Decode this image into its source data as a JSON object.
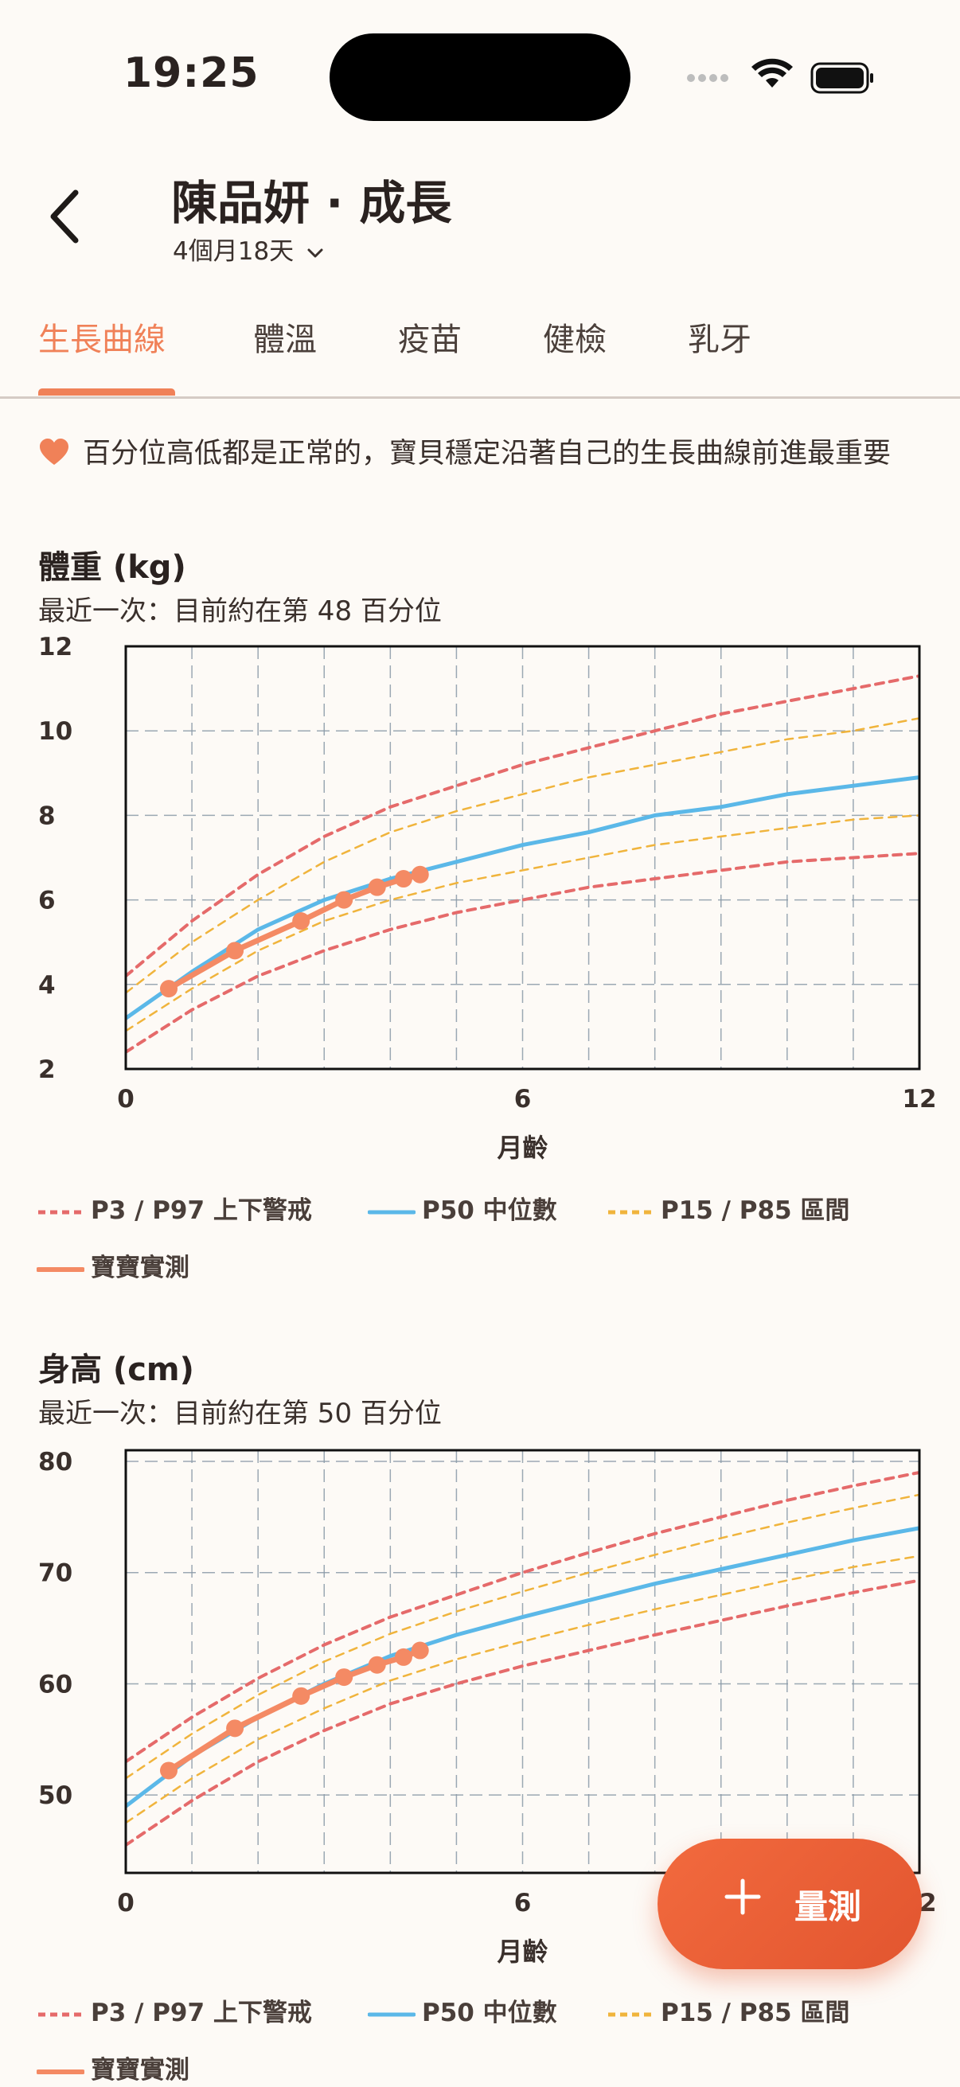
{
  "status": {
    "time": "19:25"
  },
  "header": {
    "title": "陳品妍 · 成長",
    "age": "4個月18天"
  },
  "tabs": [
    {
      "label": "生長曲線",
      "active": true
    },
    {
      "label": "體溫"
    },
    {
      "label": "疫苗"
    },
    {
      "label": "健檢"
    },
    {
      "label": "乳牙"
    }
  ],
  "notice": {
    "icon": "heart-icon",
    "text": "百分位高低都是正常的，寶貝穩定沿著自己的生長曲線前進最重要"
  },
  "weight": {
    "title": "體重 (kg)",
    "subtitle": "最近一次：目前約在第 48 百分位"
  },
  "height": {
    "title": "身高 (cm)",
    "subtitle": "最近一次：目前約在第 50 百分位"
  },
  "legend": {
    "p3p97": "P3 / P97 上下警戒",
    "p50": "P50 中位數",
    "p15p85": "P15 / P85 區間",
    "actual": "寶寶實測"
  },
  "fab": {
    "label": "量測"
  },
  "colors": {
    "accent": "#f08158",
    "p50": "#5bb8e8",
    "warn": "#e56a6a",
    "band": "#f0b43c",
    "actual": "#f48a64"
  },
  "chart_data": [
    {
      "type": "line",
      "xlabel": "月齡",
      "ylabel": "",
      "xlim": [
        0,
        12
      ],
      "ylim": [
        2,
        12
      ],
      "xticks": [
        0,
        6,
        12
      ],
      "yticks": [
        2,
        4,
        6,
        8,
        10,
        12
      ],
      "grid": true,
      "series": [
        {
          "name": "P97",
          "style": "dash-warn",
          "x": [
            0,
            1,
            2,
            3,
            4,
            5,
            6,
            7,
            8,
            9,
            10,
            11,
            12
          ],
          "y": [
            4.2,
            5.5,
            6.6,
            7.5,
            8.2,
            8.7,
            9.2,
            9.6,
            10.0,
            10.4,
            10.7,
            11.0,
            11.3
          ]
        },
        {
          "name": "P85",
          "style": "dash-band",
          "x": [
            0,
            1,
            2,
            3,
            4,
            5,
            6,
            7,
            8,
            9,
            10,
            11,
            12
          ],
          "y": [
            3.8,
            5.0,
            6.0,
            6.9,
            7.6,
            8.1,
            8.5,
            8.9,
            9.2,
            9.5,
            9.8,
            10.0,
            10.3
          ]
        },
        {
          "name": "P50",
          "style": "solid-p50",
          "x": [
            0,
            1,
            2,
            3,
            4,
            5,
            6,
            7,
            8,
            9,
            10,
            11,
            12
          ],
          "y": [
            3.2,
            4.3,
            5.3,
            6.0,
            6.5,
            6.9,
            7.3,
            7.6,
            8.0,
            8.2,
            8.5,
            8.7,
            8.9
          ]
        },
        {
          "name": "P15",
          "style": "dash-band",
          "x": [
            0,
            1,
            2,
            3,
            4,
            5,
            6,
            7,
            8,
            9,
            10,
            11,
            12
          ],
          "y": [
            2.9,
            3.9,
            4.8,
            5.5,
            6.0,
            6.4,
            6.7,
            7.0,
            7.3,
            7.5,
            7.7,
            7.9,
            8.0
          ]
        },
        {
          "name": "P3",
          "style": "dash-warn",
          "x": [
            0,
            1,
            2,
            3,
            4,
            5,
            6,
            7,
            8,
            9,
            10,
            11,
            12
          ],
          "y": [
            2.4,
            3.4,
            4.2,
            4.8,
            5.3,
            5.7,
            6.0,
            6.3,
            6.5,
            6.7,
            6.9,
            7.0,
            7.1
          ]
        },
        {
          "name": "寶寶實測",
          "style": "actual",
          "x": [
            0.65,
            1.65,
            2.65,
            3.3,
            3.8,
            4.2,
            4.45
          ],
          "y": [
            3.9,
            4.8,
            5.5,
            6.0,
            6.3,
            6.5,
            6.6
          ]
        }
      ]
    },
    {
      "type": "line",
      "xlabel": "月齡",
      "ylabel": "",
      "xlim": [
        0,
        12
      ],
      "ylim": [
        43,
        81
      ],
      "xticks": [
        0,
        6,
        12
      ],
      "yticks": [
        50,
        60,
        70,
        80
      ],
      "grid": true,
      "series": [
        {
          "name": "P97",
          "style": "dash-warn",
          "x": [
            0,
            1,
            2,
            3,
            4,
            5,
            6,
            7,
            8,
            9,
            10,
            11,
            12
          ],
          "y": [
            53,
            57,
            60.5,
            63.5,
            66,
            68,
            70,
            71.8,
            73.5,
            75,
            76.5,
            77.8,
            79
          ]
        },
        {
          "name": "P85",
          "style": "dash-band",
          "x": [
            0,
            1,
            2,
            3,
            4,
            5,
            6,
            7,
            8,
            9,
            10,
            11,
            12
          ],
          "y": [
            51.5,
            55.5,
            59,
            62,
            64.5,
            66.5,
            68.3,
            70,
            71.6,
            73.1,
            74.5,
            75.8,
            77
          ]
        },
        {
          "name": "P50",
          "style": "solid-p50",
          "x": [
            0,
            1,
            2,
            3,
            4,
            5,
            6,
            7,
            8,
            9,
            10,
            11,
            12
          ],
          "y": [
            49,
            53.5,
            57,
            60,
            62.5,
            64.4,
            66,
            67.5,
            69,
            70.3,
            71.6,
            72.9,
            74
          ]
        },
        {
          "name": "P15",
          "style": "dash-band",
          "x": [
            0,
            1,
            2,
            3,
            4,
            5,
            6,
            7,
            8,
            9,
            10,
            11,
            12
          ],
          "y": [
            47.5,
            51.5,
            55,
            57.8,
            60.3,
            62.2,
            63.8,
            65.3,
            66.7,
            68,
            69.3,
            70.5,
            71.5
          ]
        },
        {
          "name": "P3",
          "style": "dash-warn",
          "x": [
            0,
            1,
            2,
            3,
            4,
            5,
            6,
            7,
            8,
            9,
            10,
            11,
            12
          ],
          "y": [
            45.5,
            49.5,
            53,
            55.8,
            58.2,
            60,
            61.6,
            63,
            64.4,
            65.7,
            67,
            68.2,
            69.3
          ]
        },
        {
          "name": "寶寶實測",
          "style": "actual",
          "x": [
            0.65,
            1.65,
            2.65,
            3.3,
            3.8,
            4.2,
            4.45
          ],
          "y": [
            52.2,
            56,
            58.9,
            60.6,
            61.7,
            62.4,
            63
          ]
        }
      ]
    }
  ]
}
